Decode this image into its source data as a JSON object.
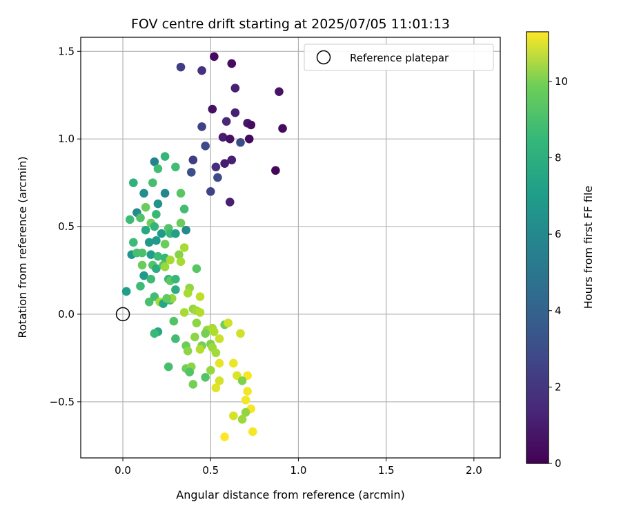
{
  "chart_data": {
    "type": "scatter",
    "title": "FOV centre drift starting at 2025/07/05 11:01:13",
    "xlabel": "Angular distance from reference (arcmin)",
    "ylabel": "Rotation from reference (arcmin)",
    "xlim": [
      -0.24,
      2.15
    ],
    "ylim": [
      -0.82,
      1.58
    ],
    "xticks": [
      0.0,
      0.5,
      1.0,
      1.5,
      2.0
    ],
    "xtick_labels": [
      "0.0",
      "0.5",
      "1.0",
      "1.5",
      "2.0"
    ],
    "yticks": [
      -0.5,
      0.0,
      0.5,
      1.0,
      1.5
    ],
    "ytick_labels": [
      "−0.5",
      "0.0",
      "0.5",
      "1.0",
      "1.5"
    ],
    "grid": true,
    "legend": {
      "position": "top-right",
      "entries": [
        "Reference platepar"
      ]
    },
    "reference_point": {
      "x": 0.0,
      "y": 0.0,
      "label": "Reference platepar"
    },
    "colorbar": {
      "label": "Hours from first FF file",
      "colormap": "viridis",
      "range": [
        0,
        11.3
      ],
      "ticks": [
        0,
        2,
        4,
        6,
        8,
        10
      ],
      "tick_labels": [
        "0",
        "2",
        "4",
        "6",
        "8",
        "10"
      ]
    },
    "points": [
      [
        0.52,
        1.47,
        0.3
      ],
      [
        0.62,
        1.43,
        0.4
      ],
      [
        0.33,
        1.41,
        2.0
      ],
      [
        0.45,
        1.39,
        1.6
      ],
      [
        0.64,
        1.29,
        1.0
      ],
      [
        0.89,
        1.27,
        0.6
      ],
      [
        0.51,
        1.17,
        0.5
      ],
      [
        0.64,
        1.15,
        1.0
      ],
      [
        0.59,
        1.1,
        1.3
      ],
      [
        0.71,
        1.09,
        0.7
      ],
      [
        0.73,
        1.08,
        0.4
      ],
      [
        0.45,
        1.07,
        2.2
      ],
      [
        0.91,
        1.06,
        0.3
      ],
      [
        0.57,
        1.01,
        0.9
      ],
      [
        0.61,
        1.0,
        0.5
      ],
      [
        0.67,
        0.98,
        2.6
      ],
      [
        0.72,
        1.0,
        0.3
      ],
      [
        0.47,
        0.96,
        2.5
      ],
      [
        0.87,
        0.82,
        0.2
      ],
      [
        0.62,
        0.88,
        1.0
      ],
      [
        0.58,
        0.86,
        0.9
      ],
      [
        0.4,
        0.88,
        2.0
      ],
      [
        0.53,
        0.84,
        1.5
      ],
      [
        0.39,
        0.81,
        2.7
      ],
      [
        0.54,
        0.78,
        2.6
      ],
      [
        0.5,
        0.7,
        2.3
      ],
      [
        0.61,
        0.64,
        1.0
      ],
      [
        0.24,
        0.9,
        7.5
      ],
      [
        0.18,
        0.87,
        5.0
      ],
      [
        0.2,
        0.83,
        7.8
      ],
      [
        0.3,
        0.84,
        7.8
      ],
      [
        0.06,
        0.75,
        7.2
      ],
      [
        0.17,
        0.75,
        7.9
      ],
      [
        0.12,
        0.69,
        5.6
      ],
      [
        0.33,
        0.69,
        8.3
      ],
      [
        0.24,
        0.69,
        5.2
      ],
      [
        0.2,
        0.63,
        5.8
      ],
      [
        0.13,
        0.61,
        8.7
      ],
      [
        0.08,
        0.58,
        5.4
      ],
      [
        0.35,
        0.6,
        7.8
      ],
      [
        0.19,
        0.57,
        7.6
      ],
      [
        0.04,
        0.54,
        7.7
      ],
      [
        0.1,
        0.55,
        8.1
      ],
      [
        0.16,
        0.52,
        8.8
      ],
      [
        0.18,
        0.5,
        7.4
      ],
      [
        0.26,
        0.49,
        8.2
      ],
      [
        0.33,
        0.52,
        8.7
      ],
      [
        0.13,
        0.48,
        6.8
      ],
      [
        0.22,
        0.46,
        6.2
      ],
      [
        0.27,
        0.46,
        7.6
      ],
      [
        0.3,
        0.46,
        6.4
      ],
      [
        0.36,
        0.48,
        5.4
      ],
      [
        0.06,
        0.41,
        7.7
      ],
      [
        0.15,
        0.41,
        6.0
      ],
      [
        0.19,
        0.42,
        6.1
      ],
      [
        0.24,
        0.4,
        8.7
      ],
      [
        0.35,
        0.38,
        9.8
      ],
      [
        0.05,
        0.34,
        5.9
      ],
      [
        0.08,
        0.35,
        7.9
      ],
      [
        0.11,
        0.35,
        8.0
      ],
      [
        0.16,
        0.34,
        6.3
      ],
      [
        0.2,
        0.33,
        7.7
      ],
      [
        0.24,
        0.32,
        7.5
      ],
      [
        0.27,
        0.31,
        9.8
      ],
      [
        0.32,
        0.34,
        9.2
      ],
      [
        0.33,
        0.3,
        9.8
      ],
      [
        0.11,
        0.28,
        8.7
      ],
      [
        0.17,
        0.28,
        8.2
      ],
      [
        0.19,
        0.26,
        7.0
      ],
      [
        0.23,
        0.28,
        8.3
      ],
      [
        0.24,
        0.27,
        9.6
      ],
      [
        0.42,
        0.26,
        8.3
      ],
      [
        0.12,
        0.22,
        6.1
      ],
      [
        0.16,
        0.2,
        7.7
      ],
      [
        0.26,
        0.2,
        7.5
      ],
      [
        0.27,
        0.19,
        8.4
      ],
      [
        0.3,
        0.2,
        7.6
      ],
      [
        0.1,
        0.16,
        7.7
      ],
      [
        0.02,
        0.13,
        6.3
      ],
      [
        0.3,
        0.14,
        7.0
      ],
      [
        0.38,
        0.15,
        9.4
      ],
      [
        0.37,
        0.12,
        9.8
      ],
      [
        0.18,
        0.1,
        7.8
      ],
      [
        0.21,
        0.07,
        9.8
      ],
      [
        0.15,
        0.07,
        8.0
      ],
      [
        0.23,
        0.06,
        6.7
      ],
      [
        0.27,
        0.08,
        7.8
      ],
      [
        0.28,
        0.09,
        9.5
      ],
      [
        0.25,
        0.09,
        8.5
      ],
      [
        0.44,
        0.1,
        10.2
      ],
      [
        0.35,
        0.01,
        9.8
      ],
      [
        0.4,
        0.03,
        9.5
      ],
      [
        0.42,
        0.02,
        9.7
      ],
      [
        0.44,
        0.01,
        10.0
      ],
      [
        0.48,
        -0.09,
        9.5
      ],
      [
        0.58,
        -0.06,
        8.8
      ],
      [
        0.6,
        -0.05,
        10.5
      ],
      [
        0.29,
        -0.04,
        8.2
      ],
      [
        0.42,
        -0.05,
        9.3
      ],
      [
        0.51,
        -0.08,
        9.8
      ],
      [
        0.52,
        -0.1,
        9.9
      ],
      [
        0.2,
        -0.1,
        6.8
      ],
      [
        0.18,
        -0.11,
        7.6
      ],
      [
        0.41,
        -0.13,
        9.3
      ],
      [
        0.47,
        -0.11,
        8.9
      ],
      [
        0.55,
        -0.14,
        10.4
      ],
      [
        0.67,
        -0.11,
        10.5
      ],
      [
        0.3,
        -0.14,
        7.8
      ],
      [
        0.36,
        -0.18,
        8.7
      ],
      [
        0.45,
        -0.18,
        8.9
      ],
      [
        0.5,
        -0.17,
        9.1
      ],
      [
        0.51,
        -0.19,
        9.6
      ],
      [
        0.44,
        -0.2,
        10.0
      ],
      [
        0.37,
        -0.21,
        9.3
      ],
      [
        0.53,
        -0.22,
        9.7
      ],
      [
        0.26,
        -0.3,
        7.9
      ],
      [
        0.36,
        -0.31,
        8.8
      ],
      [
        0.39,
        -0.3,
        9.3
      ],
      [
        0.55,
        -0.28,
        10.9
      ],
      [
        0.63,
        -0.28,
        11.0
      ],
      [
        0.38,
        -0.33,
        8.2
      ],
      [
        0.5,
        -0.32,
        9.5
      ],
      [
        0.65,
        -0.35,
        10.7
      ],
      [
        0.71,
        -0.35,
        11.2
      ],
      [
        0.47,
        -0.36,
        8.2
      ],
      [
        0.55,
        -0.38,
        10.6
      ],
      [
        0.68,
        -0.38,
        9.1
      ],
      [
        0.4,
        -0.4,
        8.9
      ],
      [
        0.53,
        -0.42,
        10.8
      ],
      [
        0.71,
        -0.44,
        11.1
      ],
      [
        0.7,
        -0.49,
        11.1
      ],
      [
        0.73,
        -0.54,
        11.2
      ],
      [
        0.7,
        -0.56,
        9.4
      ],
      [
        0.63,
        -0.58,
        10.6
      ],
      [
        0.68,
        -0.6,
        9.6
      ],
      [
        0.74,
        -0.67,
        11.2
      ],
      [
        0.58,
        -0.7,
        11.3
      ]
    ]
  }
}
